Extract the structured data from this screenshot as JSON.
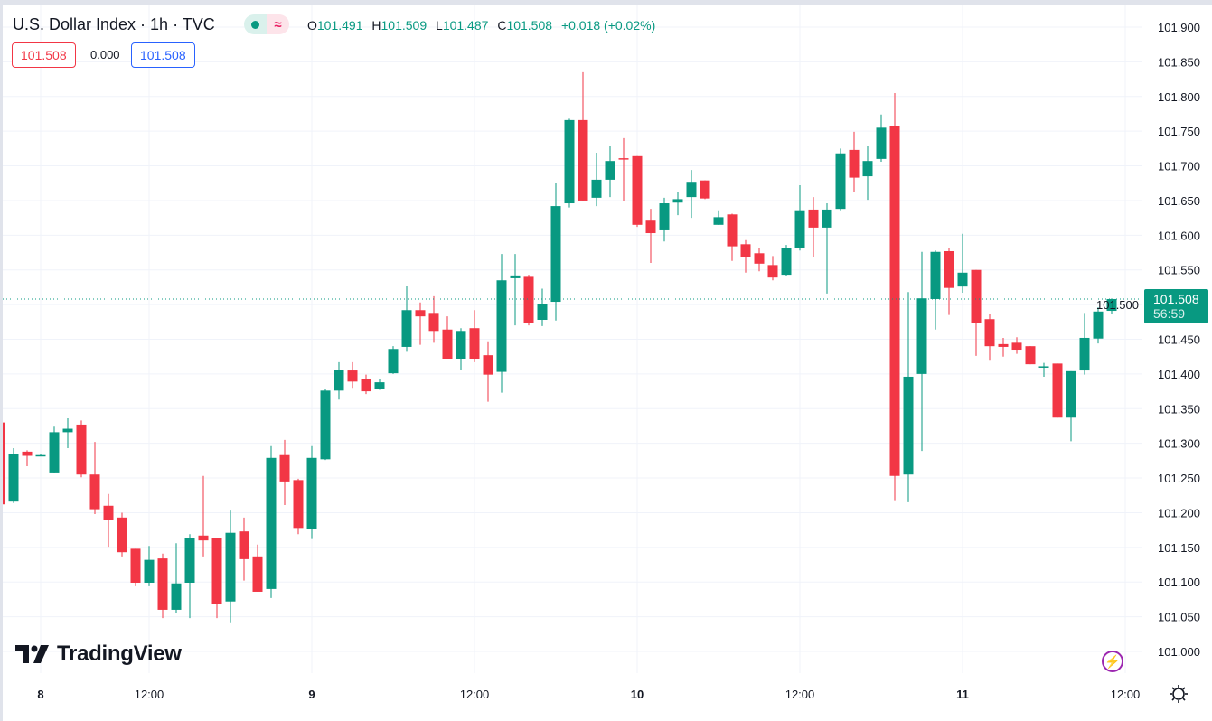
{
  "header": {
    "title": "U.S. Dollar Index · 1h · TVC",
    "status_icons": [
      "market-open-dot-icon",
      "delayed-data-icon"
    ],
    "delayed_glyph": "≈",
    "ohlc": {
      "o_label": "O",
      "o": "101.491",
      "h_label": "H",
      "h": "101.509",
      "l_label": "L",
      "l": "101.487",
      "c_label": "C",
      "c": "101.508",
      "change": "+0.018 (+0.02%)"
    },
    "bid": "101.508",
    "spread": "0.000",
    "ask": "101.508"
  },
  "last_price": {
    "value": "101.508",
    "countdown": "56:59"
  },
  "logo_text": "TradingView",
  "colors": {
    "up": "#089981",
    "down": "#f23645",
    "grid": "#f0f3fa",
    "text": "#131722",
    "bid": "#f23645",
    "ask": "#2962ff",
    "accent": "#9c27b0"
  },
  "chart_data": {
    "type": "candlestick",
    "interval": "1h",
    "ylim": [
      101.0,
      101.9
    ],
    "y_ticks": [
      "101.900",
      "101.850",
      "101.800",
      "101.750",
      "101.700",
      "101.650",
      "101.600",
      "101.550",
      "101.500",
      "101.450",
      "101.400",
      "101.350",
      "101.300",
      "101.250",
      "101.200",
      "101.150",
      "101.100",
      "101.050",
      "101.000"
    ],
    "x_ticks": [
      {
        "label": "8",
        "index": 3,
        "day": true
      },
      {
        "label": "12:00",
        "index": 11,
        "day": false
      },
      {
        "label": "9",
        "index": 23,
        "day": true
      },
      {
        "label": "12:00",
        "index": 35,
        "day": false
      },
      {
        "label": "10",
        "index": 47,
        "day": true
      },
      {
        "label": "12:00",
        "index": 59,
        "day": false
      },
      {
        "label": "11",
        "index": 71,
        "day": true
      },
      {
        "label": "12:00",
        "index": 83,
        "day": false
      }
    ],
    "last_price": 101.508,
    "candles_ohlc": [
      [
        101.33,
        101.33,
        101.212,
        101.212
      ],
      [
        101.216,
        101.293,
        101.214,
        101.285
      ],
      [
        101.288,
        101.29,
        101.267,
        101.282
      ],
      [
        101.283,
        101.284,
        101.282,
        101.283
      ],
      [
        101.258,
        101.324,
        101.257,
        101.316
      ],
      [
        101.316,
        101.336,
        101.293,
        101.321
      ],
      [
        101.327,
        101.333,
        101.251,
        101.255
      ],
      [
        101.255,
        101.302,
        101.198,
        101.205
      ],
      [
        101.21,
        101.227,
        101.151,
        101.189
      ],
      [
        101.193,
        101.2,
        101.137,
        101.143
      ],
      [
        101.148,
        101.148,
        101.094,
        101.099
      ],
      [
        101.099,
        101.152,
        101.094,
        101.132
      ],
      [
        101.134,
        101.141,
        101.048,
        101.06
      ],
      [
        101.06,
        101.156,
        101.056,
        101.098
      ],
      [
        101.099,
        101.169,
        101.048,
        101.164
      ],
      [
        101.167,
        101.253,
        101.137,
        101.16
      ],
      [
        101.163,
        101.163,
        101.048,
        101.068
      ],
      [
        101.072,
        101.203,
        101.042,
        101.171
      ],
      [
        101.173,
        101.193,
        101.102,
        101.133
      ],
      [
        101.137,
        101.154,
        101.086,
        101.086
      ],
      [
        101.09,
        101.296,
        101.077,
        101.279
      ],
      [
        101.283,
        101.305,
        101.211,
        101.245
      ],
      [
        101.247,
        101.249,
        101.169,
        101.178
      ],
      [
        101.176,
        101.296,
        101.162,
        101.279
      ],
      [
        101.277,
        101.378,
        101.276,
        101.376
      ],
      [
        101.376,
        101.417,
        101.363,
        101.406
      ],
      [
        101.405,
        101.417,
        101.38,
        101.389
      ],
      [
        101.393,
        101.399,
        101.371,
        101.375
      ],
      [
        101.379,
        101.392,
        101.377,
        101.388
      ],
      [
        101.401,
        101.44,
        101.4,
        101.436
      ],
      [
        101.439,
        101.527,
        101.432,
        101.492
      ],
      [
        101.492,
        101.503,
        101.442,
        101.483
      ],
      [
        101.488,
        101.512,
        101.445,
        101.462
      ],
      [
        101.464,
        101.483,
        101.422,
        101.422
      ],
      [
        101.422,
        101.466,
        101.406,
        101.462
      ],
      [
        101.466,
        101.492,
        101.417,
        101.422
      ],
      [
        101.427,
        101.447,
        101.36,
        101.399
      ],
      [
        101.403,
        101.573,
        101.373,
        101.535
      ],
      [
        101.538,
        101.573,
        101.47,
        101.542
      ],
      [
        101.54,
        101.543,
        101.47,
        101.474
      ],
      [
        101.478,
        101.523,
        101.469,
        101.501
      ],
      [
        101.504,
        101.675,
        101.477,
        101.642
      ],
      [
        101.646,
        101.768,
        101.64,
        101.766
      ],
      [
        101.766,
        101.835,
        101.65,
        101.65
      ],
      [
        101.654,
        101.719,
        101.642,
        101.68
      ],
      [
        101.68,
        101.728,
        101.655,
        101.707
      ],
      [
        101.711,
        101.74,
        101.649,
        101.71
      ],
      [
        101.714,
        101.714,
        101.612,
        101.615
      ],
      [
        101.621,
        101.638,
        101.56,
        101.603
      ],
      [
        101.607,
        101.654,
        101.591,
        101.646
      ],
      [
        101.647,
        101.663,
        101.629,
        101.652
      ],
      [
        101.655,
        101.694,
        101.625,
        101.677
      ],
      [
        101.679,
        101.679,
        101.652,
        101.653
      ],
      [
        101.615,
        101.636,
        101.615,
        101.626
      ],
      [
        101.63,
        101.631,
        101.563,
        101.584
      ],
      [
        101.587,
        101.593,
        101.546,
        101.569
      ],
      [
        101.574,
        101.582,
        101.548,
        101.559
      ],
      [
        101.557,
        101.57,
        101.535,
        101.539
      ],
      [
        101.543,
        101.586,
        101.541,
        101.582
      ],
      [
        101.582,
        101.672,
        101.578,
        101.636
      ],
      [
        101.637,
        101.655,
        101.569,
        101.611
      ],
      [
        101.611,
        101.646,
        101.516,
        101.637
      ],
      [
        101.638,
        101.725,
        101.636,
        101.718
      ],
      [
        101.723,
        101.749,
        101.663,
        101.683
      ],
      [
        101.685,
        101.728,
        101.651,
        101.707
      ],
      [
        101.71,
        101.774,
        101.706,
        101.755
      ],
      [
        101.758,
        101.805,
        101.218,
        101.253
      ],
      [
        101.255,
        101.518,
        101.215,
        101.396
      ],
      [
        101.4,
        101.576,
        101.289,
        101.509
      ],
      [
        101.508,
        101.578,
        101.464,
        101.576
      ],
      [
        101.577,
        101.582,
        101.485,
        101.524
      ],
      [
        101.526,
        101.602,
        101.517,
        101.546
      ],
      [
        101.55,
        101.55,
        101.426,
        101.474
      ],
      [
        101.479,
        101.487,
        101.419,
        101.44
      ],
      [
        101.443,
        101.452,
        101.425,
        101.439
      ],
      [
        101.445,
        101.453,
        101.429,
        101.435
      ],
      [
        101.44,
        101.44,
        101.414,
        101.414
      ],
      [
        101.41,
        101.416,
        101.396,
        101.411
      ],
      [
        101.415,
        101.415,
        101.337,
        101.337
      ],
      [
        101.337,
        101.404,
        101.303,
        101.404
      ],
      [
        101.405,
        101.488,
        101.399,
        101.452
      ],
      [
        101.451,
        101.496,
        101.444,
        101.49
      ],
      [
        101.491,
        101.509,
        101.487,
        101.508
      ]
    ]
  }
}
